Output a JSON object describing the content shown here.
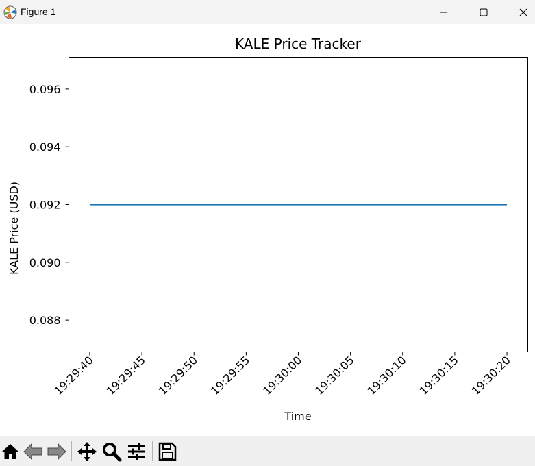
{
  "window": {
    "title": "Figure 1",
    "icons": {
      "app": "matplotlib-icon",
      "minimize": "minimize-icon",
      "maximize": "maximize-icon",
      "close": "close-icon"
    }
  },
  "toolbar": {
    "buttons": [
      "home-icon",
      "back-icon",
      "forward-icon",
      "pan-icon",
      "zoom-icon",
      "configure-subplots-icon",
      "save-icon"
    ]
  },
  "chart_data": {
    "type": "line",
    "title": "KALE Price Tracker",
    "xlabel": "Time",
    "ylabel": "KALE Price (USD)",
    "x_ticks": [
      "19:29:40",
      "19:29:45",
      "19:29:50",
      "19:29:55",
      "19:30:00",
      "19:30:05",
      "19:30:10",
      "19:30:15",
      "19:30:20"
    ],
    "y_ticks": [
      "0.088",
      "0.090",
      "0.092",
      "0.094",
      "0.096"
    ],
    "y_tick_values": [
      0.088,
      0.09,
      0.092,
      0.094,
      0.096
    ],
    "ylim": [
      0.0869,
      0.0971
    ],
    "xlim": [
      "19:29:38",
      "19:30:22"
    ],
    "series": [
      {
        "color": "#1f77b4",
        "x": [
          "19:29:40",
          "19:30:20"
        ],
        "y": [
          0.092,
          0.092
        ]
      }
    ],
    "grid": false,
    "legend": "none"
  }
}
